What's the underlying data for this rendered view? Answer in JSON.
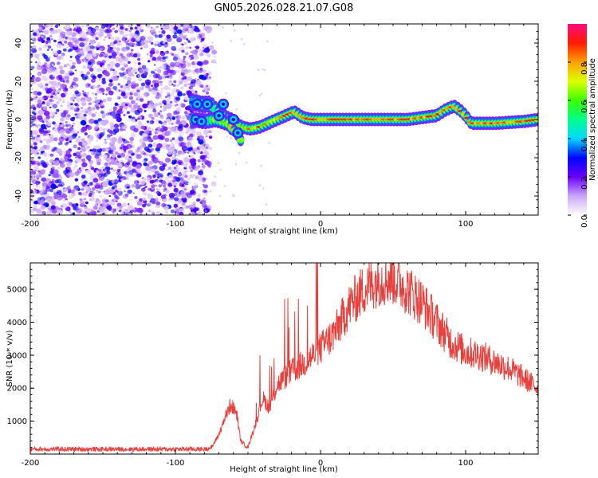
{
  "title": "GN05.2026.028.21.07.G08",
  "chart_data": [
    {
      "type": "heatmap",
      "name": "spectrogram",
      "xlabel": "Height of straight line (km)",
      "ylabel": "Frequency (Hz)",
      "xlim": [
        -200,
        150
      ],
      "ylim": [
        -50,
        50
      ],
      "x_ticks": [
        "-200",
        "-100",
        "0",
        "100"
      ],
      "y_ticks": [
        "-40",
        "-20",
        "0",
        "20",
        "40"
      ],
      "colorbar_label": "Normalized spectral amplitude",
      "colorbar_range": [
        0,
        1
      ],
      "colorbar_ticks": [
        "0.0",
        "0.2",
        "0.4",
        "0.6",
        "0.8"
      ],
      "noise_region_x": [
        -200,
        -80
      ],
      "signal_track": {
        "x": [
          -88,
          -82,
          -76,
          -70,
          -64,
          -58,
          -54,
          -48,
          -42,
          -36,
          -30,
          -24,
          -18,
          -12,
          -6,
          0,
          20,
          40,
          60,
          80,
          86,
          92,
          96,
          100,
          104,
          120,
          140,
          150
        ],
        "freq": [
          9,
          8,
          8,
          3,
          0,
          -2,
          -4,
          -5,
          -4,
          -2,
          0,
          2,
          4,
          1,
          0,
          0,
          0,
          0,
          0,
          2,
          5,
          7,
          5,
          2,
          -2,
          -2,
          -1,
          0
        ]
      },
      "secondary_branch": {
        "x": [
          -88,
          -80,
          -72,
          -64,
          -58,
          -54
        ],
        "freq": [
          0,
          -1,
          0,
          -2,
          -7,
          -12
        ]
      }
    },
    {
      "type": "line",
      "name": "snr",
      "xlabel": "Height of straight line (km)",
      "ylabel": "SNR (10 * v/v)",
      "xlim": [
        -200,
        150
      ],
      "ylim": [
        0,
        5800
      ],
      "x_ticks": [
        "-200",
        "-100",
        "0",
        "100"
      ],
      "y_ticks": [
        "1000",
        "2000",
        "3000",
        "4000",
        "5000"
      ],
      "color": "#e8403c",
      "envelope": {
        "x": [
          -200,
          -80,
          -75,
          -70,
          -66,
          -62,
          -58,
          -55,
          -50,
          -45,
          -40,
          -35,
          -30,
          -20,
          -10,
          0,
          10,
          20,
          30,
          40,
          50,
          60,
          70,
          80,
          90,
          100,
          110,
          120,
          130,
          140,
          150
        ],
        "y": [
          150,
          150,
          200,
          600,
          1100,
          1500,
          1300,
          400,
          200,
          900,
          1700,
          1400,
          2100,
          2500,
          2800,
          3200,
          3700,
          4500,
          5000,
          5300,
          5350,
          5000,
          4600,
          4000,
          3400,
          3100,
          3000,
          2800,
          2600,
          2300,
          2000
        ]
      }
    }
  ]
}
